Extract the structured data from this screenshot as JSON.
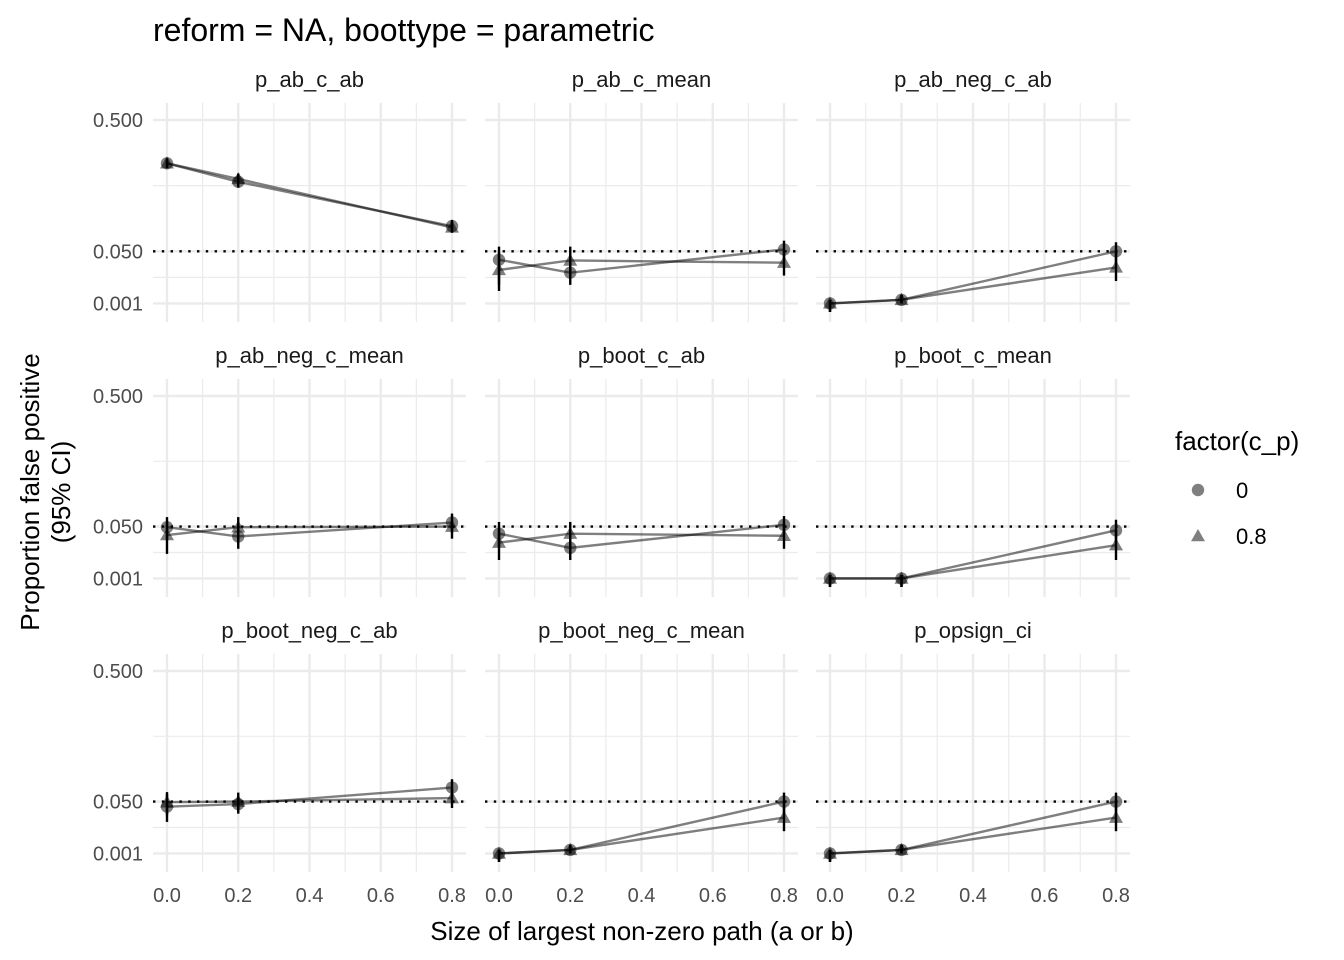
{
  "chart_data": {
    "type": "line",
    "title": "reform = NA, boottype = parametric",
    "xlabel": "Size of largest non-zero path (a or b)",
    "ylabel_line1": "Proportion false positive",
    "ylabel_line2": "(95% CI)",
    "x_ticks": [
      "0.0",
      "0.2",
      "0.4",
      "0.6",
      "0.8"
    ],
    "x_tick_values": [
      0,
      0.2,
      0.4,
      0.6,
      0.8
    ],
    "xlim": [
      0,
      0.8
    ],
    "y_scale": "log-like",
    "y_ticks": [
      "0.500",
      "0.050",
      "0.001"
    ],
    "y_tick_values": [
      0.5,
      0.05,
      0.001
    ],
    "reference_line": 0.05,
    "legend": {
      "title": "factor(c_p)",
      "position": "right",
      "entries": [
        {
          "label": "0",
          "shape": "circle"
        },
        {
          "label": "0.8",
          "shape": "triangle"
        }
      ]
    },
    "x": [
      0,
      0.2,
      0.8
    ],
    "facets": [
      {
        "name": "p_ab_c_ab",
        "series": [
          {
            "c_p": "0",
            "values": [
              0.3,
              0.23,
              0.1
            ],
            "lower": [
              0.28,
              0.21,
              0.088
            ],
            "upper": [
              0.32,
              0.25,
              0.115
            ]
          },
          {
            "c_p": "0.8",
            "values": [
              0.3,
              0.24,
              0.097
            ],
            "lower": [
              0.28,
              0.22,
              0.085
            ],
            "upper": [
              0.32,
              0.26,
              0.11
            ]
          }
        ]
      },
      {
        "name": "p_ab_c_mean",
        "series": [
          {
            "c_p": "0",
            "values": [
              0.037,
              0.021,
              0.053
            ],
            "lower": [
              0.006,
              0.01,
              0.038
            ],
            "upper": [
              0.058,
              0.042,
              0.069
            ]
          },
          {
            "c_p": "0.8",
            "values": [
              0.024,
              0.036,
              0.033
            ],
            "lower": [
              0.01,
              0.02,
              0.018
            ],
            "upper": [
              0.048,
              0.058,
              0.052
            ]
          }
        ]
      },
      {
        "name": "p_ab_neg_c_ab",
        "series": [
          {
            "c_p": "0",
            "values": [
              0.001,
              0.002,
              0.05
            ],
            "lower": [
              0.0,
              0.001,
              0.032
            ],
            "upper": [
              0.002,
              0.004,
              0.066
            ]
          },
          {
            "c_p": "0.8",
            "values": [
              0.001,
              0.002,
              0.027
            ],
            "lower": [
              0.0,
              0.001,
              0.013
            ],
            "upper": [
              0.002,
              0.004,
              0.048
            ]
          }
        ]
      },
      {
        "name": "p_ab_neg_c_mean",
        "series": [
          {
            "c_p": "0",
            "values": [
              0.049,
              0.035,
              0.057
            ],
            "lower": [
              0.03,
              0.02,
              0.04
            ],
            "upper": [
              0.067,
              0.056,
              0.074
            ]
          },
          {
            "c_p": "0.8",
            "values": [
              0.037,
              0.049,
              0.05
            ],
            "lower": [
              0.015,
              0.03,
              0.032
            ],
            "upper": [
              0.058,
              0.067,
              0.066
            ]
          }
        ]
      },
      {
        "name": "p_boot_c_ab",
        "series": [
          {
            "c_p": "0",
            "values": [
              0.039,
              0.021,
              0.053
            ],
            "lower": [
              0.022,
              0.01,
              0.038
            ],
            "upper": [
              0.058,
              0.042,
              0.069
            ]
          },
          {
            "c_p": "0.8",
            "values": [
              0.027,
              0.039,
              0.036
            ],
            "lower": [
              0.01,
              0.022,
              0.02
            ],
            "upper": [
              0.048,
              0.058,
              0.055
            ]
          }
        ]
      },
      {
        "name": "p_boot_c_mean",
        "series": [
          {
            "c_p": "0",
            "values": [
              0.001,
              0.001,
              0.044
            ],
            "lower": [
              0.0,
              0.0,
              0.028
            ],
            "upper": [
              0.002,
              0.002,
              0.062
            ]
          },
          {
            "c_p": "0.8",
            "values": [
              0.001,
              0.001,
              0.024
            ],
            "lower": [
              0.0,
              0.0,
              0.01
            ],
            "upper": [
              0.002,
              0.002,
              0.044
            ]
          }
        ]
      },
      {
        "name": "p_boot_neg_c_ab",
        "series": [
          {
            "c_p": "0",
            "values": [
              0.042,
              0.046,
              0.076
            ],
            "lower": [
              0.022,
              0.032,
              0.058
            ],
            "upper": [
              0.063,
              0.06,
              0.094
            ]
          },
          {
            "c_p": "0.8",
            "values": [
              0.049,
              0.05,
              0.056
            ],
            "lower": [
              0.03,
              0.034,
              0.04
            ],
            "upper": [
              0.067,
              0.066,
              0.073
            ]
          }
        ]
      },
      {
        "name": "p_boot_neg_c_mean",
        "series": [
          {
            "c_p": "0",
            "values": [
              0.001,
              0.002,
              0.05
            ],
            "lower": [
              0.0,
              0.001,
              0.032
            ],
            "upper": [
              0.002,
              0.004,
              0.066
            ]
          },
          {
            "c_p": "0.8",
            "values": [
              0.001,
              0.002,
              0.027
            ],
            "lower": [
              0.0,
              0.001,
              0.013
            ],
            "upper": [
              0.002,
              0.004,
              0.048
            ]
          }
        ]
      },
      {
        "name": "p_opsign_ci",
        "series": [
          {
            "c_p": "0",
            "values": [
              0.001,
              0.002,
              0.05
            ],
            "lower": [
              0.0,
              0.001,
              0.032
            ],
            "upper": [
              0.002,
              0.004,
              0.066
            ]
          },
          {
            "c_p": "0.8",
            "values": [
              0.001,
              0.002,
              0.027
            ],
            "lower": [
              0.0,
              0.001,
              0.013
            ],
            "upper": [
              0.002,
              0.004,
              0.048
            ]
          }
        ]
      }
    ]
  }
}
